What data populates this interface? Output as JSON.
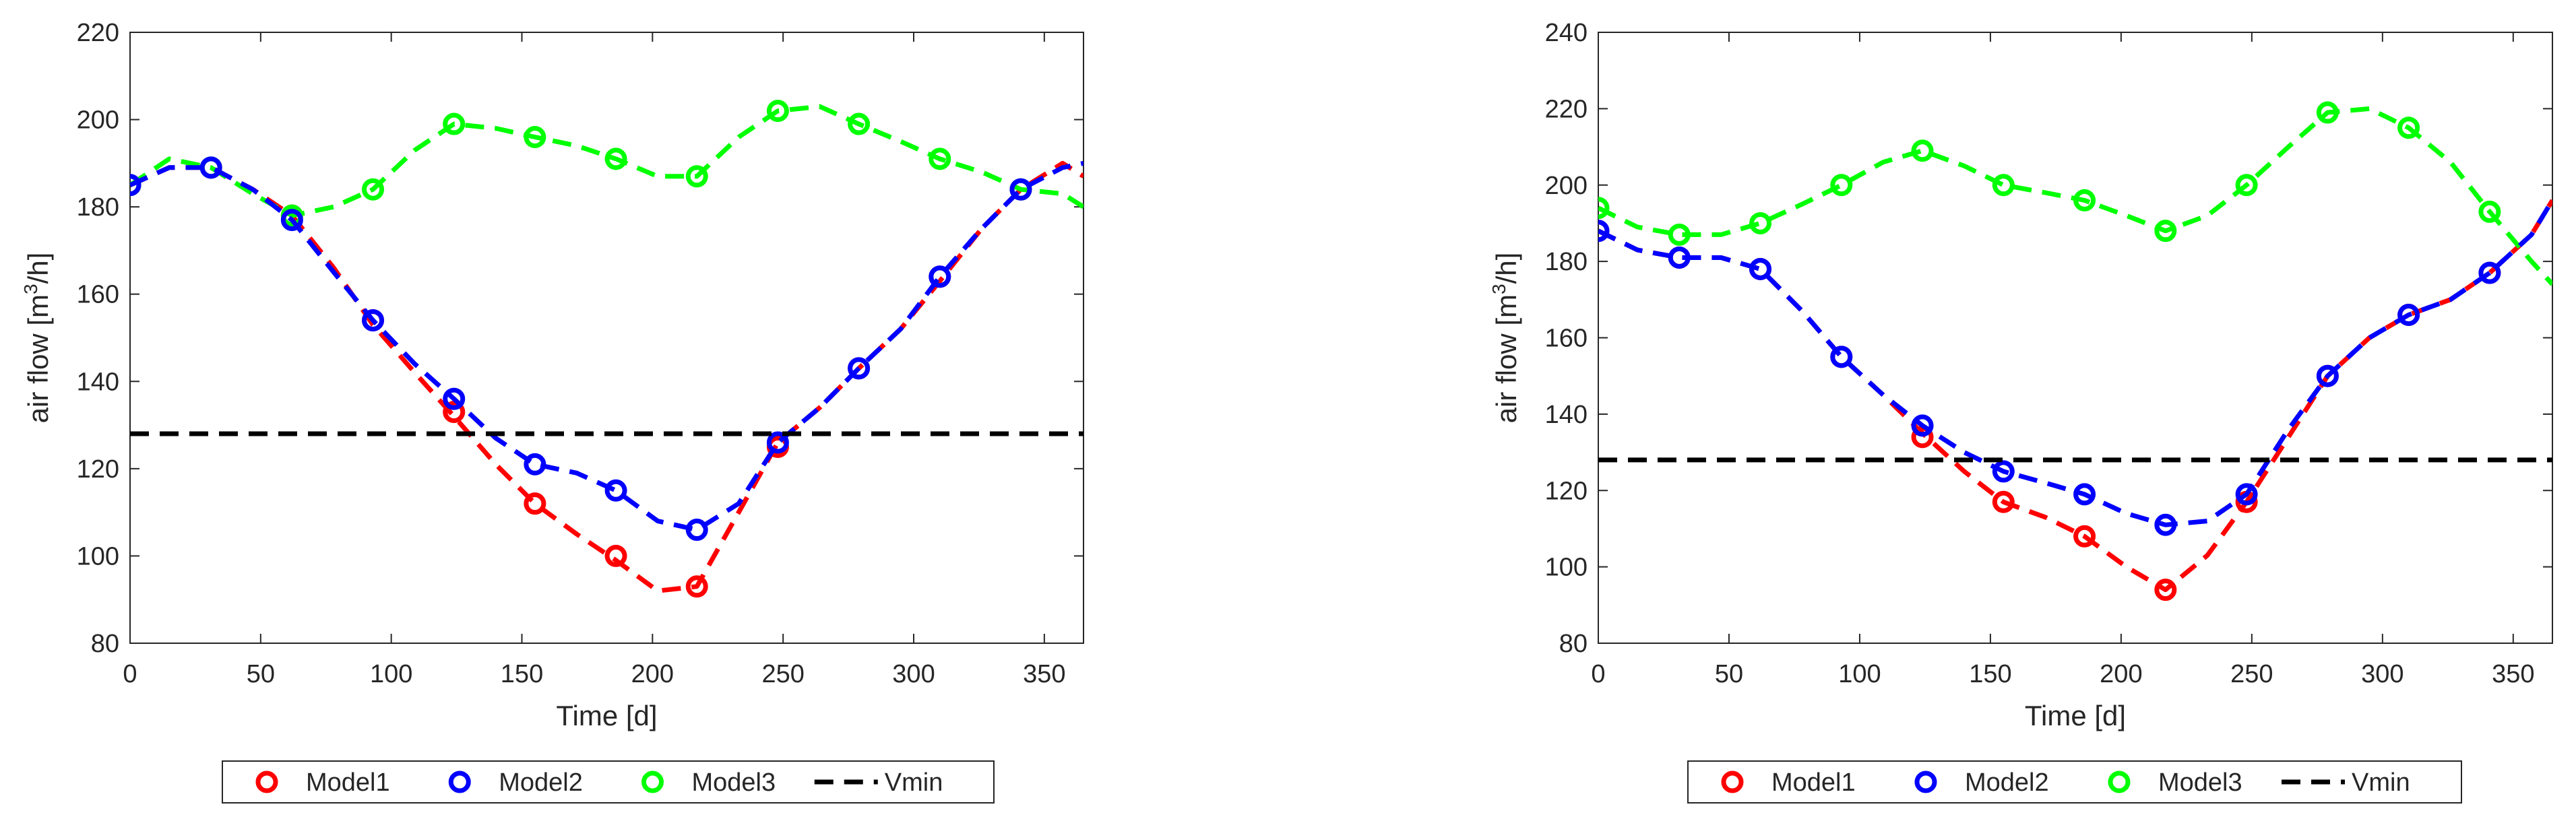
{
  "chart_data": [
    {
      "type": "line",
      "title": "",
      "xlabel": "Time [d]",
      "ylabel_prefix": "air flow [m",
      "ylabel_sup": "3",
      "ylabel_suffix": "/h]",
      "xlim": [
        0,
        365
      ],
      "ylim": [
        80,
        220
      ],
      "xticks": [
        0,
        50,
        100,
        150,
        200,
        250,
        300,
        350
      ],
      "yticks": [
        80,
        100,
        120,
        140,
        160,
        180,
        200,
        220
      ],
      "grid": false,
      "legend": {
        "placement": "bottom",
        "entries": [
          "Model1",
          "Model2",
          "Model3",
          "Vmin"
        ]
      },
      "series": [
        {
          "name": "Model1",
          "color": "#ff0000",
          "markers_x": [
            0,
            31,
            62,
            93,
            124,
            155,
            186,
            217,
            248,
            279,
            310,
            341
          ],
          "markers_y": [
            185,
            189,
            178,
            154,
            133,
            112,
            100,
            93,
            125,
            143,
            164,
            184
          ],
          "curve_x": [
            0,
            15,
            31,
            47,
            62,
            78,
            93,
            109,
            124,
            140,
            155,
            171,
            186,
            202,
            217,
            233,
            248,
            264,
            279,
            295,
            310,
            326,
            341,
            357,
            365
          ],
          "curve_y": [
            185,
            189,
            189,
            184,
            178,
            166,
            153,
            142,
            132,
            121,
            112,
            105,
            99,
            92,
            93,
            110,
            126,
            134,
            143,
            152,
            163,
            175,
            184,
            190,
            187
          ]
        },
        {
          "name": "Model2",
          "color": "#0000ff",
          "markers_x": [
            0,
            31,
            62,
            93,
            124,
            155,
            186,
            217,
            248,
            279,
            310,
            341
          ],
          "markers_y": [
            185,
            189,
            177,
            154,
            136,
            121,
            115,
            106,
            126,
            143,
            164,
            184
          ],
          "curve_x": [
            0,
            15,
            31,
            47,
            62,
            78,
            93,
            109,
            124,
            140,
            155,
            171,
            186,
            202,
            217,
            233,
            248,
            264,
            279,
            295,
            310,
            326,
            341,
            357,
            365
          ],
          "curve_y": [
            185,
            189,
            189,
            184,
            177,
            165,
            154,
            144,
            136,
            127,
            121,
            119,
            115,
            108,
            106,
            112,
            126,
            134,
            143,
            152,
            164,
            175,
            184,
            189,
            190
          ]
        },
        {
          "name": "Model3",
          "color": "#00ff00",
          "markers_x": [
            0,
            31,
            62,
            93,
            124,
            155,
            186,
            217,
            248,
            279,
            310,
            341
          ],
          "markers_y": [
            185,
            189,
            178,
            184,
            199,
            196,
            191,
            187,
            202,
            199,
            191,
            184
          ],
          "curve_x": [
            0,
            15,
            31,
            47,
            62,
            78,
            93,
            109,
            124,
            140,
            155,
            171,
            186,
            202,
            217,
            233,
            248,
            264,
            279,
            295,
            310,
            326,
            341,
            357,
            365
          ],
          "curve_y": [
            185,
            191,
            189,
            183,
            178,
            180,
            184,
            193,
            199,
            198,
            196,
            194,
            191,
            187,
            187,
            196,
            202,
            203,
            199,
            195,
            191,
            188,
            184,
            183,
            180
          ]
        },
        {
          "name": "Vmin",
          "color": "#000000",
          "x": [
            0,
            365
          ],
          "y": [
            128,
            128
          ]
        }
      ]
    },
    {
      "type": "line",
      "title": "",
      "xlabel": "Time [d]",
      "ylabel_prefix": "air flow [m",
      "ylabel_sup": "3",
      "ylabel_suffix": "/h]",
      "xlim": [
        0,
        365
      ],
      "ylim": [
        80,
        240
      ],
      "xticks": [
        0,
        50,
        100,
        150,
        200,
        250,
        300,
        350
      ],
      "yticks": [
        80,
        100,
        120,
        140,
        160,
        180,
        200,
        220,
        240
      ],
      "grid": false,
      "legend": {
        "placement": "bottom",
        "entries": [
          "Model1",
          "Model2",
          "Model3",
          "Vmin"
        ]
      },
      "series": [
        {
          "name": "Model1",
          "color": "#ff0000",
          "markers_x": [
            0,
            31,
            62,
            93,
            124,
            155,
            186,
            217,
            248,
            279,
            310,
            341
          ],
          "markers_y": [
            188,
            181,
            178,
            155,
            134,
            117,
            108,
            94,
            117,
            150,
            166,
            177
          ],
          "curve_x": [
            0,
            15,
            31,
            47,
            62,
            78,
            93,
            109,
            124,
            140,
            155,
            171,
            186,
            202,
            217,
            233,
            248,
            264,
            279,
            295,
            310,
            326,
            341,
            357,
            365
          ],
          "curve_y": [
            188,
            183,
            181,
            181,
            178,
            167,
            155,
            145,
            135,
            125,
            117,
            113,
            108,
            100,
            94,
            103,
            117,
            134,
            150,
            160,
            166,
            170,
            177,
            187,
            196
          ]
        },
        {
          "name": "Model2",
          "color": "#0000ff",
          "markers_x": [
            0,
            31,
            62,
            93,
            124,
            155,
            186,
            217,
            248,
            279,
            310,
            341
          ],
          "markers_y": [
            188,
            181,
            178,
            155,
            137,
            125,
            119,
            111,
            119,
            150,
            166,
            177
          ],
          "curve_x": [
            0,
            15,
            31,
            47,
            62,
            78,
            93,
            109,
            124,
            140,
            155,
            171,
            186,
            202,
            217,
            233,
            248,
            264,
            279,
            295,
            310,
            326,
            341,
            357,
            365
          ],
          "curve_y": [
            188,
            183,
            181,
            181,
            178,
            167,
            155,
            145,
            137,
            130,
            125,
            122,
            119,
            114,
            111,
            112,
            119,
            136,
            150,
            160,
            166,
            170,
            177,
            187,
            196
          ]
        },
        {
          "name": "Model3",
          "color": "#00ff00",
          "markers_x": [
            0,
            31,
            62,
            93,
            124,
            155,
            186,
            217,
            248,
            279,
            310,
            341
          ],
          "markers_y": [
            194,
            187,
            190,
            200,
            209,
            200,
            196,
            188,
            200,
            219,
            215,
            193
          ],
          "curve_x": [
            0,
            15,
            31,
            47,
            62,
            78,
            93,
            109,
            124,
            140,
            155,
            171,
            186,
            202,
            217,
            233,
            248,
            264,
            279,
            295,
            310,
            326,
            341,
            357,
            365
          ],
          "curve_y": [
            194,
            189,
            187,
            187,
            190,
            195,
            200,
            206,
            209,
            205,
            200,
            198,
            196,
            192,
            188,
            192,
            200,
            210,
            219,
            220,
            215,
            206,
            193,
            180,
            174
          ]
        },
        {
          "name": "Vmin",
          "color": "#000000",
          "x": [
            0,
            365
          ],
          "y": [
            128,
            128
          ]
        }
      ]
    }
  ]
}
